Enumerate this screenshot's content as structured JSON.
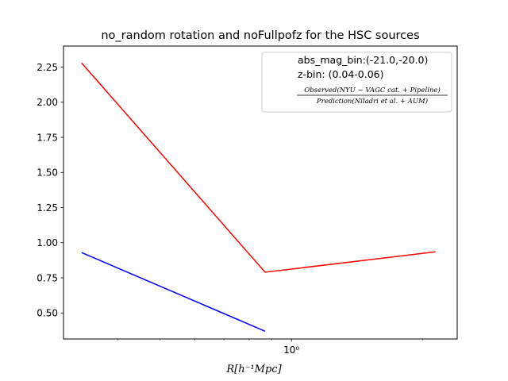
{
  "chart_data": {
    "type": "line",
    "title": "no_random rotation and noFullpofz for the HSC sources",
    "xlabel": "R[h⁻¹Mpc]",
    "ylabel": "",
    "xscale": "log",
    "xlim": [
      0.3,
      2.4
    ],
    "ylim": [
      0.315,
      2.4
    ],
    "y_ticks": [
      "0.50",
      "0.75",
      "1.00",
      "1.25",
      "1.50",
      "1.75",
      "2.00",
      "2.25"
    ],
    "x_ticks": [
      "10⁰"
    ],
    "grid": false,
    "legend": {
      "placement": "top-right",
      "entries": [
        "abs_mag_bin:(-21.0,-20.0)",
        "z-bin: (0.04-0.06)"
      ],
      "fraction_numerator": "Observed(NYU − VAGC cat. + Pipeline)",
      "fraction_denominator": "Prediction(Niladri et al. + AUM)"
    },
    "series": [
      {
        "color": "#ff0000",
        "x": [
          0.33,
          0.87,
          2.14
        ],
        "y": [
          2.28,
          0.79,
          0.935
        ]
      },
      {
        "color": "#0000ff",
        "x": [
          0.33,
          0.87
        ],
        "y": [
          0.93,
          0.37
        ]
      }
    ]
  }
}
